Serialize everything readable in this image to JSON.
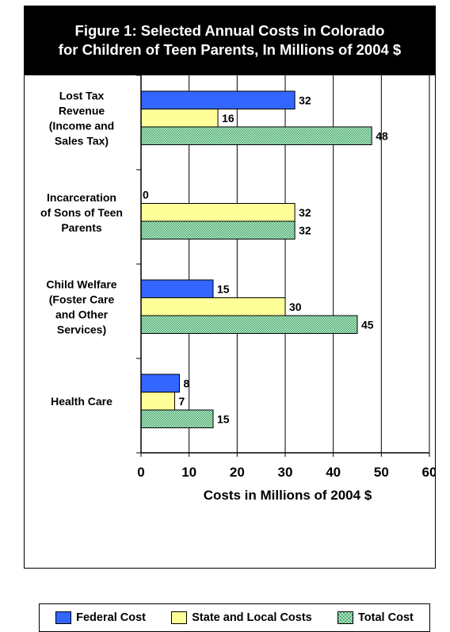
{
  "title_lines": [
    "Figure 1: Selected Annual Costs in Colorado",
    "for Children of Teen Parents, In Millions of 2004 $"
  ],
  "colors": {
    "federal": "#3366ff",
    "state_local": "#ffff99",
    "total": "#33a366",
    "title_bg": "#000000"
  },
  "chart_data": {
    "type": "bar",
    "orientation": "horizontal",
    "title": "Figure 1: Selected Annual Costs in Colorado for Children of Teen Parents, In Millions of 2004 $",
    "xlabel": "Costs in Millions of 2004 $",
    "ylabel": "",
    "xlim": [
      0,
      60
    ],
    "xticks": [
      0,
      10,
      20,
      30,
      40,
      50,
      60
    ],
    "grid": true,
    "legend_position": "bottom",
    "categories": [
      [
        "Lost Tax",
        "Revenue",
        "(Income and",
        "Sales Tax)"
      ],
      [
        "Incarceration",
        "of Sons of Teen",
        "Parents"
      ],
      [
        "Child Welfare",
        "(Foster Care",
        "and Other",
        "Services)"
      ],
      [
        "Health Care"
      ]
    ],
    "series": [
      {
        "name": "Federal Cost",
        "values": [
          32,
          0,
          15,
          8
        ]
      },
      {
        "name": "State and Local Costs",
        "values": [
          16,
          32,
          30,
          7
        ]
      },
      {
        "name": "Total Cost",
        "values": [
          48,
          32,
          45,
          15
        ]
      }
    ]
  }
}
